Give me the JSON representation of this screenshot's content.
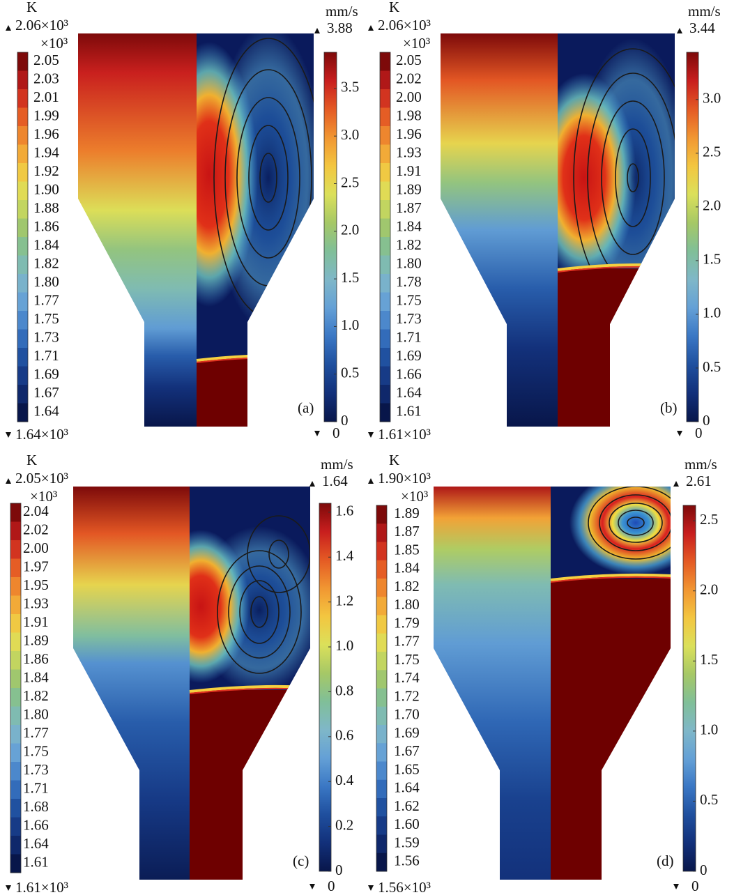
{
  "panels": [
    {
      "label": "(a)",
      "temperature": {
        "unit": "K",
        "max": "2.06×10³",
        "multiplier": "×10³",
        "ticks": [
          "2.05",
          "2.03",
          "2.01",
          "1.99",
          "1.96",
          "1.94",
          "1.92",
          "1.90",
          "1.88",
          "1.86",
          "1.84",
          "1.82",
          "1.80",
          "1.77",
          "1.75",
          "1.73",
          "1.71",
          "1.69",
          "1.67",
          "1.64"
        ],
        "min": "1.64×10³"
      },
      "velocity": {
        "unit": "mm/s",
        "max": "3.88",
        "ticks": [
          "3.5",
          "3.0",
          "2.5",
          "2.0",
          "1.5",
          "1.0",
          "0.5",
          "0"
        ],
        "min": "0"
      }
    },
    {
      "label": "(b)",
      "temperature": {
        "unit": "K",
        "max": "2.06×10³",
        "multiplier": "×10³",
        "ticks": [
          "2.05",
          "2.02",
          "2.00",
          "1.98",
          "1.96",
          "1.93",
          "1.91",
          "1.89",
          "1.87",
          "1.84",
          "1.82",
          "1.80",
          "1.78",
          "1.75",
          "1.73",
          "1.71",
          "1.69",
          "1.66",
          "1.64",
          "1.61"
        ],
        "min": "1.61×10³"
      },
      "velocity": {
        "unit": "mm/s",
        "max": "3.44",
        "ticks": [
          "3.0",
          "2.5",
          "2.0",
          "1.5",
          "1.0",
          "0.5",
          "0"
        ],
        "min": "0"
      }
    },
    {
      "label": "(c)",
      "temperature": {
        "unit": "K",
        "max": "2.05×10³",
        "multiplier": "×10³",
        "ticks": [
          "2.04",
          "2.02",
          "2.00",
          "1.97",
          "1.95",
          "1.93",
          "1.91",
          "1.89",
          "1.86",
          "1.84",
          "1.82",
          "1.80",
          "1.77",
          "1.75",
          "1.73",
          "1.71",
          "1.68",
          "1.66",
          "1.64",
          "1.61"
        ],
        "min": "1.61×10³"
      },
      "velocity": {
        "unit": "mm/s",
        "max": "1.64",
        "ticks": [
          "1.6",
          "1.4",
          "1.2",
          "1.0",
          "0.8",
          "0.6",
          "0.4",
          "0.2",
          "0"
        ],
        "min": "0"
      }
    },
    {
      "label": "(d)",
      "temperature": {
        "unit": "K",
        "max": "1.90×10³",
        "multiplier": "×10³",
        "ticks": [
          "1.89",
          "1.87",
          "1.85",
          "1.84",
          "1.82",
          "1.80",
          "1.79",
          "1.77",
          "1.75",
          "1.74",
          "1.72",
          "1.70",
          "1.69",
          "1.67",
          "1.65",
          "1.64",
          "1.62",
          "1.60",
          "1.59",
          "1.56"
        ],
        "min": "1.56×10³"
      },
      "velocity": {
        "unit": "mm/s",
        "max": "2.61",
        "ticks": [
          "2.5",
          "2.0",
          "1.5",
          "1.0",
          "0.5",
          "0"
        ],
        "min": "0"
      }
    }
  ]
}
